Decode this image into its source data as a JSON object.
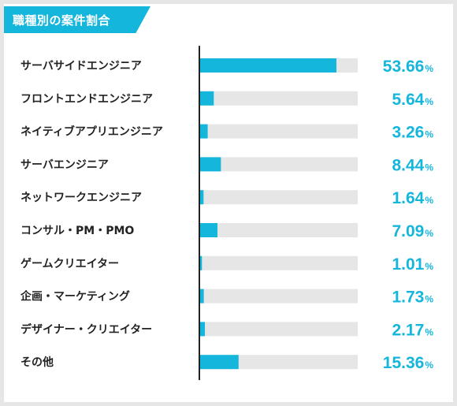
{
  "chart_data": {
    "type": "bar",
    "orientation": "horizontal",
    "title": "職種別の案件割合",
    "categories": [
      "サーバサイドエンジニア",
      "フロントエンドエンジニア",
      "ネイティブアプリエンジニア",
      "サーバエンジニア",
      "ネットワークエンジニア",
      "コンサル・PM・PMO",
      "ゲームクリエイター",
      "企画・マーケティング",
      "デザイナー・クリエイター",
      "その他"
    ],
    "values": [
      53.66,
      5.64,
      3.26,
      8.44,
      1.64,
      7.09,
      1.01,
      1.73,
      2.17,
      15.36
    ],
    "value_labels": [
      "53.66",
      "5.64",
      "3.26",
      "8.44",
      "1.64",
      "7.09",
      "1.01",
      "1.73",
      "2.17",
      "15.36"
    ],
    "unit": "%",
    "xlim": [
      0,
      62
    ],
    "bar_color": "#15b6dc",
    "track_color": "#e6e6e6",
    "axis_color": "#222222",
    "grid": false,
    "legend": false
  }
}
